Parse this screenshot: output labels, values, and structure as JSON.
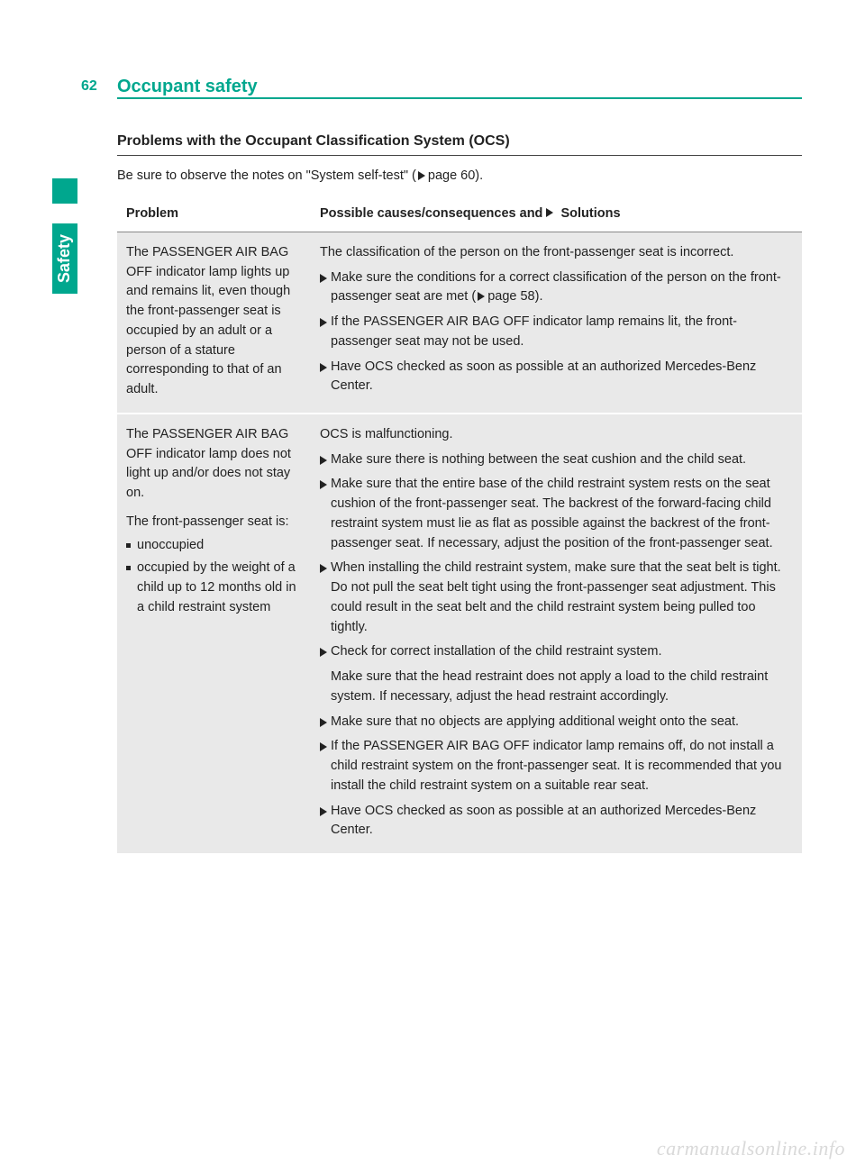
{
  "colors": {
    "accent": "#00a78e",
    "row_bg": "#e9e9e9",
    "text": "#222222",
    "watermark": "#d9d9d9"
  },
  "typography": {
    "body_font": "Arial",
    "body_size_pt": 11,
    "heading_size_pt": 15,
    "line_height": 1.5
  },
  "page_number": "62",
  "header_title": "Occupant safety",
  "side_tab": "Safety",
  "section_title": "Problems with the Occupant Classification System (OCS)",
  "intro_prefix": "Be sure to observe the notes on \"System self-test\" (",
  "intro_pageref": "page 60).",
  "table": {
    "col_problem": "Problem",
    "col_solutions_prefix": "Possible causes/consequences and ",
    "col_solutions_suffix": " Solutions",
    "rows": [
      {
        "problem": "The PASSENGER AIR BAG OFF indicator lamp lights up and remains lit, even though the front-passenger seat is occupied by an adult or a person of a stature corresponding to that of an adult.",
        "cause": "The classification of the person on the front-passenger seat is incorrect.",
        "solutions": [
          {
            "text_pre": "Make sure the conditions for a correct classification of the person on the front-passenger seat are met (",
            "pageref": "page 58)."
          },
          {
            "text": "If the PASSENGER AIR BAG OFF indicator lamp remains lit, the front-passenger seat may not be used."
          },
          {
            "text": "Have OCS checked as soon as possible at an authorized Mercedes-Benz Center."
          }
        ]
      },
      {
        "problem_main": "The PASSENGER AIR BAG OFF indicator lamp does not light up and/or does not stay on.",
        "problem_sub": "The front-passenger seat is:",
        "problem_bullets": [
          "unoccupied",
          "occupied by the weight of a child up to 12 months old in a child restraint system"
        ],
        "cause": "OCS is malfunctioning.",
        "solutions": [
          {
            "text": "Make sure there is nothing between the seat cushion and the child seat."
          },
          {
            "text": "Make sure that the entire base of the child restraint system rests on the seat cushion of the front-passenger seat. The backrest of the forward-facing child restraint system must lie as flat as possible against the backrest of the front-passenger seat. If necessary, adjust the position of the front-passenger seat."
          },
          {
            "text": "When installing the child restraint system, make sure that the seat belt is tight. Do not pull the seat belt tight using the front-passenger seat adjustment. This could result in the seat belt and the child restraint system being pulled too tightly."
          },
          {
            "text": "Check for correct installation of the child restraint system.",
            "followup": "Make sure that the head restraint does not apply a load to the child restraint system. If necessary, adjust the head restraint accordingly."
          },
          {
            "text": "Make sure that no objects are applying additional weight onto the seat."
          },
          {
            "text": "If the PASSENGER AIR BAG OFF indicator lamp remains off, do not install a child restraint system on the front-passenger seat. It is recommended that you install the child restraint system on a suitable rear seat."
          },
          {
            "text": "Have OCS checked as soon as possible at an authorized Mercedes-Benz Center."
          }
        ]
      }
    ]
  },
  "watermark": "carmanualsonline.info"
}
